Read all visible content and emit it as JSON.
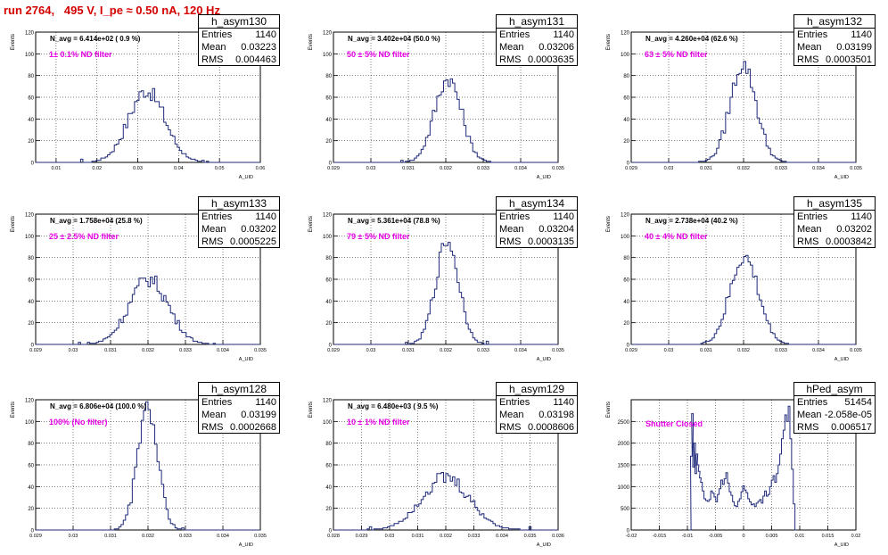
{
  "run_title": "run 2764,   495 V, I_pe ≈ 0.50 nA, 120 Hz",
  "colors": {
    "hist": "#1f2a7a",
    "annotation": "#e600e6",
    "title": "#d40000"
  },
  "chart_data": [
    {
      "type": "histogram",
      "name": "h_asym130",
      "stats": {
        "entries": "1140",
        "mean": "0.03223",
        "rms": "0.004463"
      },
      "navg_text": "N_avg = 6.414e+02 ( 0.9 %)",
      "annotation": "1± 0.1% ND filter",
      "ylabel": "Events",
      "xlabel": "A_UID",
      "xlim": [
        0.005,
        0.06
      ],
      "ylim": [
        0,
        120
      ],
      "xticks": [
        "0.01",
        "0.02",
        "0.03",
        "0.04",
        "0.05",
        "0.06"
      ],
      "xtick_values": [
        0.01,
        0.02,
        0.03,
        0.04,
        0.05,
        0.06
      ],
      "yticks": [
        "0",
        "20",
        "40",
        "60",
        "80",
        "100",
        "120"
      ],
      "grid": true,
      "mu": 0.0322,
      "sigma": 0.00446,
      "peak": 66
    },
    {
      "type": "histogram",
      "name": "h_asym131",
      "stats": {
        "entries": "1140",
        "mean": "0.03206",
        "rms": "0.0003635"
      },
      "navg_text": "N_avg = 3.402e+04 (50.0 %)",
      "annotation": "50 ± 5% ND filter",
      "ylabel": "Events",
      "xlabel": "A_UID",
      "xlim": [
        0.029,
        0.035
      ],
      "ylim": [
        0,
        120
      ],
      "xticks": [
        "0.029",
        "0.03",
        "0.031",
        "0.032",
        "0.033",
        "0.034",
        "0.035"
      ],
      "xtick_values": [
        0.029,
        0.03,
        0.031,
        0.032,
        0.033,
        0.034,
        0.035
      ],
      "yticks": [
        "0",
        "20",
        "40",
        "60",
        "80",
        "100",
        "120"
      ],
      "grid": true,
      "mu": 0.03206,
      "sigma": 0.00036,
      "peak": 77
    },
    {
      "type": "histogram",
      "name": "h_asym132",
      "stats": {
        "entries": "1140",
        "mean": "0.03199",
        "rms": "0.0003501"
      },
      "navg_text": "N_avg = 4.260e+04 (62.6 %)",
      "annotation": "63 ± 5% ND filter",
      "ylabel": "Events",
      "xlabel": "A_UID",
      "xlim": [
        0.029,
        0.035
      ],
      "ylim": [
        0,
        120
      ],
      "xticks": [
        "0.029",
        "0.03",
        "0.031",
        "0.032",
        "0.033",
        "0.034",
        "0.035"
      ],
      "xtick_values": [
        0.029,
        0.03,
        0.031,
        0.032,
        0.033,
        0.034,
        0.035
      ],
      "yticks": [
        "0",
        "20",
        "40",
        "60",
        "80",
        "100",
        "120"
      ],
      "grid": true,
      "mu": 0.03199,
      "sigma": 0.00035,
      "peak": 90
    },
    {
      "type": "histogram",
      "name": "h_asym133",
      "stats": {
        "entries": "1140",
        "mean": "0.03202",
        "rms": "0.0005225"
      },
      "navg_text": "N_avg = 1.758e+04 (25.8 %)",
      "annotation": "25 ± 2.5% ND filter",
      "ylabel": "Events",
      "xlabel": "A_UID",
      "xlim": [
        0.029,
        0.035
      ],
      "ylim": [
        0,
        120
      ],
      "xticks": [
        "0.029",
        "0.03",
        "0.031",
        "0.032",
        "0.033",
        "0.034",
        "0.035"
      ],
      "xtick_values": [
        0.029,
        0.03,
        0.031,
        0.032,
        0.033,
        0.034,
        0.035
      ],
      "yticks": [
        "0",
        "20",
        "40",
        "60",
        "80",
        "100",
        "120"
      ],
      "grid": true,
      "mu": 0.03202,
      "sigma": 0.00052,
      "peak": 60
    },
    {
      "type": "histogram",
      "name": "h_asym134",
      "stats": {
        "entries": "1140",
        "mean": "0.03204",
        "rms": "0.0003135"
      },
      "navg_text": "N_avg = 5.361e+04 (78.8 %)",
      "annotation": "79 ± 5% ND filter",
      "ylabel": "Events",
      "xlabel": "A_UID",
      "xlim": [
        0.029,
        0.035
      ],
      "ylim": [
        0,
        120
      ],
      "xticks": [
        "0.029",
        "0.03",
        "0.031",
        "0.032",
        "0.033",
        "0.034",
        "0.035"
      ],
      "xtick_values": [
        0.029,
        0.03,
        0.031,
        0.032,
        0.033,
        0.034,
        0.035
      ],
      "yticks": [
        "0",
        "20",
        "40",
        "60",
        "80",
        "100",
        "120"
      ],
      "grid": true,
      "mu": 0.03204,
      "sigma": 0.00031,
      "peak": 95
    },
    {
      "type": "histogram",
      "name": "h_asym135",
      "stats": {
        "entries": "1140",
        "mean": "0.03202",
        "rms": "0.0003842"
      },
      "navg_text": "N_avg = 2.738e+04 (40.2 %)",
      "annotation": "40 ± 4% ND filter",
      "ylabel": "Events",
      "xlabel": "A_UID",
      "xlim": [
        0.029,
        0.035
      ],
      "ylim": [
        0,
        120
      ],
      "xticks": [
        "0.029",
        "0.03",
        "0.031",
        "0.032",
        "0.033",
        "0.034",
        "0.035"
      ],
      "xtick_values": [
        0.029,
        0.03,
        0.031,
        0.032,
        0.033,
        0.034,
        0.035
      ],
      "yticks": [
        "0",
        "20",
        "40",
        "60",
        "80",
        "100",
        "120"
      ],
      "grid": true,
      "mu": 0.03202,
      "sigma": 0.00038,
      "peak": 80
    },
    {
      "type": "histogram",
      "name": "h_asym128",
      "stats": {
        "entries": "1140",
        "mean": "0.03199",
        "rms": "0.0002668"
      },
      "navg_text": "N_avg = 6.806e+04 (100.0 %)",
      "annotation": "100% (No filter)",
      "ylabel": "Events",
      "xlabel": "A_UID",
      "xlim": [
        0.029,
        0.035
      ],
      "ylim": [
        0,
        120
      ],
      "xticks": [
        "0.029",
        "0.03",
        "0.031",
        "0.032",
        "0.033",
        "0.034",
        "0.035"
      ],
      "xtick_values": [
        0.029,
        0.03,
        0.031,
        0.032,
        0.033,
        0.034,
        0.035
      ],
      "yticks": [
        "0",
        "20",
        "40",
        "60",
        "80",
        "100",
        "120"
      ],
      "grid": true,
      "mu": 0.03199,
      "sigma": 0.00027,
      "peak": 112
    },
    {
      "type": "histogram",
      "name": "h_asym129",
      "stats": {
        "entries": "1140",
        "mean": "0.03198",
        "rms": "0.0008606"
      },
      "navg_text": "N_avg = 6.480e+03 ( 9.5 %)",
      "annotation": "10 ± 1% ND filter",
      "ylabel": "Events",
      "xlabel": "A_UID",
      "xlim": [
        0.028,
        0.036
      ],
      "ylim": [
        0,
        120
      ],
      "xticks": [
        "0.028",
        "0.029",
        "0.03",
        "0.031",
        "0.032",
        "0.033",
        "0.034",
        "0.035",
        "0.036"
      ],
      "xtick_values": [
        0.028,
        0.029,
        0.03,
        0.031,
        0.032,
        0.033,
        0.034,
        0.035,
        0.036
      ],
      "yticks": [
        "0",
        "20",
        "40",
        "60",
        "80",
        "100",
        "120"
      ],
      "grid": true,
      "mu": 0.03198,
      "sigma": 0.00086,
      "peak": 48
    },
    {
      "type": "histogram",
      "name": "hPed_asym",
      "stats": {
        "entries": "51454",
        "mean": "-2.058e-05",
        "rms": "0.006517"
      },
      "navg_text": "",
      "annotation": "Shutter Closed",
      "ylabel": "Events",
      "xlabel": "A_UID",
      "xlim": [
        -0.02,
        0.02
      ],
      "ylim": [
        0,
        3000
      ],
      "xticks": [
        "-0.02",
        "-0.015",
        "-0.01",
        "-0.005",
        "0",
        "0.005",
        "0.01",
        "0.015",
        "0.02"
      ],
      "xtick_values": [
        -0.02,
        -0.015,
        -0.01,
        -0.005,
        0,
        0.005,
        0.01,
        0.015,
        0.02
      ],
      "yticks": [
        "0",
        "500",
        "1000",
        "1500",
        "2000",
        "2500"
      ],
      "grid": true,
      "pedestal": true,
      "bins": [
        {
          "x": -0.0095,
          "y": 0
        },
        {
          "x": -0.0093,
          "y": 1700
        },
        {
          "x": -0.0091,
          "y": 2680
        },
        {
          "x": -0.0089,
          "y": 1450
        },
        {
          "x": -0.0087,
          "y": 2000
        },
        {
          "x": -0.0085,
          "y": 1300
        },
        {
          "x": -0.0083,
          "y": 1750
        },
        {
          "x": -0.0081,
          "y": 1500
        },
        {
          "x": -0.0079,
          "y": 1350
        },
        {
          "x": -0.0077,
          "y": 1200
        },
        {
          "x": -0.0075,
          "y": 1100
        },
        {
          "x": -0.0072,
          "y": 900
        },
        {
          "x": -0.0069,
          "y": 720
        },
        {
          "x": -0.0066,
          "y": 680
        },
        {
          "x": -0.0063,
          "y": 660
        },
        {
          "x": -0.006,
          "y": 700
        },
        {
          "x": -0.0057,
          "y": 900
        },
        {
          "x": -0.0054,
          "y": 850
        },
        {
          "x": -0.0051,
          "y": 760
        },
        {
          "x": -0.0048,
          "y": 650
        },
        {
          "x": -0.0045,
          "y": 820
        },
        {
          "x": -0.0042,
          "y": 950
        },
        {
          "x": -0.0039,
          "y": 1150
        },
        {
          "x": -0.0036,
          "y": 1050
        },
        {
          "x": -0.0033,
          "y": 1180
        },
        {
          "x": -0.003,
          "y": 1320
        },
        {
          "x": -0.0027,
          "y": 1080
        },
        {
          "x": -0.0024,
          "y": 880
        },
        {
          "x": -0.0021,
          "y": 800
        },
        {
          "x": -0.0018,
          "y": 650
        },
        {
          "x": -0.0015,
          "y": 560
        },
        {
          "x": -0.0012,
          "y": 540
        },
        {
          "x": -0.0009,
          "y": 660
        },
        {
          "x": -0.0006,
          "y": 720
        },
        {
          "x": -0.0003,
          "y": 880
        },
        {
          "x": 0,
          "y": 1020
        },
        {
          "x": 0.0003,
          "y": 920
        },
        {
          "x": 0.0006,
          "y": 860
        },
        {
          "x": 0.0009,
          "y": 720
        },
        {
          "x": 0.0012,
          "y": 650
        },
        {
          "x": 0.0015,
          "y": 580
        },
        {
          "x": 0.0018,
          "y": 600
        },
        {
          "x": 0.0021,
          "y": 540
        },
        {
          "x": 0.0024,
          "y": 620
        },
        {
          "x": 0.0027,
          "y": 660
        },
        {
          "x": 0.003,
          "y": 700
        },
        {
          "x": 0.0033,
          "y": 620
        },
        {
          "x": 0.0036,
          "y": 780
        },
        {
          "x": 0.0039,
          "y": 900
        },
        {
          "x": 0.0042,
          "y": 780
        },
        {
          "x": 0.0045,
          "y": 820
        },
        {
          "x": 0.0048,
          "y": 1000
        },
        {
          "x": 0.0051,
          "y": 1150
        },
        {
          "x": 0.0054,
          "y": 1250
        },
        {
          "x": 0.0057,
          "y": 1100
        },
        {
          "x": 0.006,
          "y": 1300
        },
        {
          "x": 0.0063,
          "y": 1500
        },
        {
          "x": 0.0066,
          "y": 1750
        },
        {
          "x": 0.0069,
          "y": 2100
        },
        {
          "x": 0.0072,
          "y": 2300
        },
        {
          "x": 0.0075,
          "y": 2650
        },
        {
          "x": 0.0078,
          "y": 2500
        },
        {
          "x": 0.0081,
          "y": 2850
        },
        {
          "x": 0.0084,
          "y": 2100
        },
        {
          "x": 0.0087,
          "y": 1400
        },
        {
          "x": 0.009,
          "y": 600
        },
        {
          "x": 0.0093,
          "y": 0
        }
      ]
    }
  ]
}
